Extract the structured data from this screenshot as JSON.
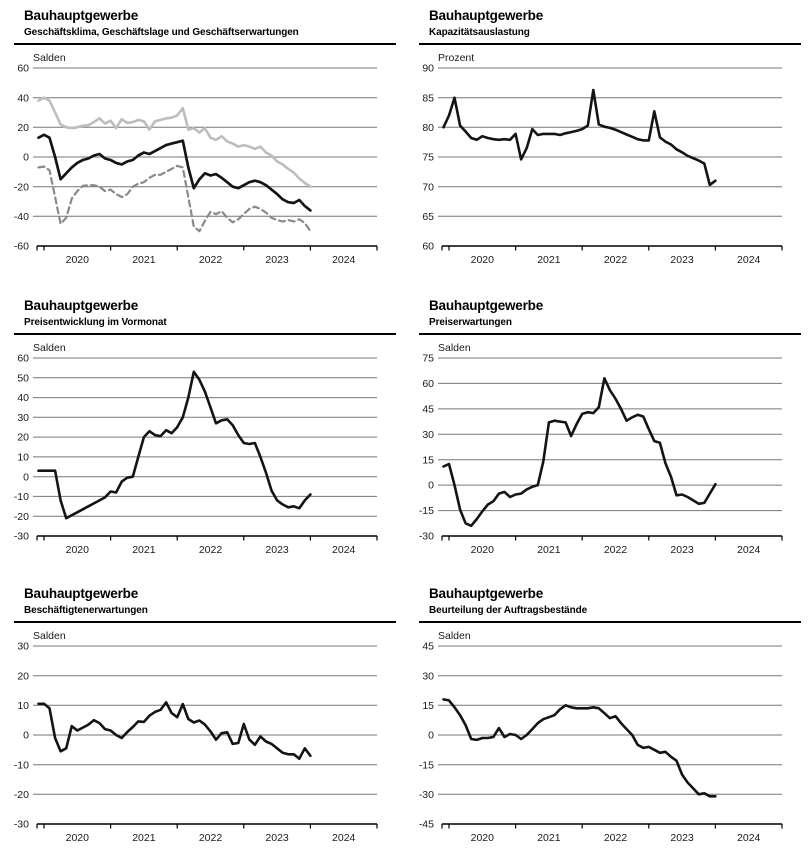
{
  "page_background": "#ffffff",
  "chart_data": [
    {
      "type": "line",
      "title": "Bauhauptgewerbe",
      "subtitle": "Geschäftsklima, Geschäftslage und Geschäftserwartungen",
      "ylabel": "Salden",
      "y_ticks": [
        60,
        40,
        20,
        0,
        -20,
        -40,
        -60
      ],
      "ylim": [
        -60,
        60
      ],
      "x_tick_labels": [
        "2020",
        "2021",
        "2022",
        "2023",
        "2024"
      ],
      "x_monthly_start": "2019-12",
      "grid": true,
      "legend_position": "none",
      "grid_color": "#777777",
      "series": [
        {
          "name": "Geschäftslage",
          "color": "#bdbdbd",
          "width": 2.6,
          "dash": null,
          "values": [
            38,
            40,
            38,
            30,
            22,
            20,
            19.5,
            20,
            21,
            21.5,
            23.5,
            26,
            22.5,
            24.5,
            19.5,
            25.5,
            23,
            23.5,
            25,
            24,
            18.5,
            24,
            25,
            26,
            26.5,
            28,
            33,
            18.5,
            19.5,
            16.5,
            19.5,
            13,
            11.5,
            14,
            10.5,
            9,
            7,
            8,
            7,
            5.5,
            7,
            3,
            1,
            -3,
            -5,
            -8,
            -10.5,
            -14.5,
            -17.5,
            -20
          ]
        },
        {
          "name": "Geschäftserwartungen",
          "color": "#8a8a8a",
          "width": 2.2,
          "dash": "6 4",
          "values": [
            -7,
            -6.5,
            -9,
            -27,
            -45,
            -41,
            -28,
            -23,
            -19.5,
            -19,
            -19,
            -20,
            -23,
            -22,
            -25,
            -27,
            -25,
            -20,
            -18,
            -17,
            -14,
            -12,
            -12,
            -10,
            -8,
            -6,
            -7,
            -27,
            -47,
            -50,
            -43,
            -37,
            -38.5,
            -36.5,
            -41,
            -44,
            -42,
            -38.5,
            -35,
            -33.5,
            -35,
            -37.5,
            -41,
            -42.5,
            -43.5,
            -42.5,
            -43.5,
            -42,
            -44.5,
            -50
          ]
        },
        {
          "name": "Geschäftsklima",
          "color": "#141414",
          "width": 2.7,
          "dash": null,
          "values": [
            13,
            15,
            13,
            0,
            -15,
            -11,
            -7,
            -4,
            -2,
            -1,
            1,
            2,
            -1,
            -2,
            -4,
            -5,
            -3,
            -2,
            1,
            3,
            2,
            4,
            6,
            8,
            9,
            10,
            11,
            -7,
            -21,
            -15,
            -11,
            -12.5,
            -11.5,
            -14,
            -17,
            -20,
            -21,
            -19,
            -17,
            -16,
            -17,
            -19,
            -22,
            -25,
            -28.5,
            -30.5,
            -31,
            -29,
            -33,
            -36
          ]
        }
      ]
    },
    {
      "type": "line",
      "title": "Bauhauptgewerbe",
      "subtitle": "Kapazitätsauslastung",
      "ylabel": "Prozent",
      "y_ticks": [
        90,
        85,
        80,
        75,
        70,
        65,
        60
      ],
      "ylim": [
        60,
        90
      ],
      "x_tick_labels": [
        "2020",
        "2021",
        "2022",
        "2023",
        "2024"
      ],
      "x_monthly_start": "2019-12",
      "grid": true,
      "legend_position": "none",
      "grid_color": "#777777",
      "series": [
        {
          "name": "Kapazitätsauslastung",
          "color": "#141414",
          "width": 2.6,
          "dash": null,
          "values": [
            80,
            82,
            85,
            80.3,
            79.3,
            78.2,
            77.9,
            78.5,
            78.2,
            78,
            77.9,
            78,
            77.9,
            78.9,
            74.6,
            76.5,
            79.7,
            78.7,
            78.9,
            78.9,
            78.9,
            78.7,
            79,
            79.2,
            79.4,
            79.7,
            80.3,
            86.3,
            80.5,
            80.1,
            79.9,
            79.6,
            79.2,
            78.8,
            78.4,
            78,
            77.8,
            77.8,
            82.7,
            78.3,
            77.6,
            77.1,
            76.3,
            75.8,
            75.2,
            74.8,
            74.4,
            73.9,
            70.3,
            71
          ]
        }
      ]
    },
    {
      "type": "line",
      "title": "Bauhauptgewerbe",
      "subtitle": "Preisentwicklung im Vormonat",
      "ylabel": "Salden",
      "y_ticks": [
        60,
        50,
        40,
        30,
        20,
        10,
        0,
        -10,
        -20,
        -30
      ],
      "ylim": [
        -30,
        60
      ],
      "x_tick_labels": [
        "2020",
        "2021",
        "2022",
        "2023",
        "2024"
      ],
      "x_monthly_start": "2019-12",
      "grid": true,
      "legend_position": "none",
      "grid_color": "#777777",
      "series": [
        {
          "name": "Preisentwicklung im Vormonat",
          "color": "#141414",
          "width": 2.6,
          "dash": null,
          "values": [
            3,
            3,
            3,
            3,
            -12,
            -21,
            -19.5,
            -18,
            -16.5,
            -15,
            -13.5,
            -12,
            -10.5,
            -7.5,
            -8,
            -2.5,
            -0.5,
            0,
            10,
            20,
            23,
            21,
            20.5,
            23.5,
            22,
            25,
            30,
            40,
            53,
            49,
            43,
            35,
            27,
            28.5,
            29,
            26,
            21,
            17,
            16.5,
            17,
            10,
            2,
            -7,
            -12,
            -14,
            -15.5,
            -15,
            -16,
            -12,
            -9
          ]
        }
      ]
    },
    {
      "type": "line",
      "title": "Bauhauptgewerbe",
      "subtitle": "Preiserwartungen",
      "ylabel": "Salden",
      "y_ticks": [
        75,
        60,
        45,
        30,
        15,
        0,
        -15,
        -30
      ],
      "ylim": [
        -30,
        75
      ],
      "x_tick_labels": [
        "2020",
        "2021",
        "2022",
        "2023",
        "2024"
      ],
      "x_monthly_start": "2019-12",
      "grid": true,
      "legend_position": "none",
      "grid_color": "#777777",
      "series": [
        {
          "name": "Preiserwartungen",
          "color": "#141414",
          "width": 2.6,
          "dash": null,
          "values": [
            11,
            12.5,
            0,
            -14.5,
            -22.5,
            -24,
            -20,
            -15.5,
            -11.5,
            -9.5,
            -5,
            -4,
            -7,
            -5.5,
            -5,
            -2.5,
            -1,
            0,
            14,
            37,
            38,
            37.5,
            37,
            29,
            36,
            42,
            43,
            42.5,
            46,
            63,
            56,
            51,
            45,
            38,
            40,
            41.5,
            40.5,
            33,
            26,
            25,
            13,
            5,
            -6,
            -5.5,
            -7,
            -9,
            -11,
            -10.5,
            -5,
            0.5
          ]
        }
      ]
    },
    {
      "type": "line",
      "title": "Bauhauptgewerbe",
      "subtitle": "Beschäftigtenerwartungen",
      "ylabel": "Salden",
      "y_ticks": [
        30,
        20,
        10,
        0,
        -10,
        -20,
        -30
      ],
      "ylim": [
        -30,
        30
      ],
      "x_tick_labels": [
        "2020",
        "2021",
        "2022",
        "2023",
        "2024"
      ],
      "x_monthly_start": "2019-12",
      "grid": true,
      "legend_position": "none",
      "grid_color": "#777777",
      "series": [
        {
          "name": "Beschäftigtenerwartungen",
          "color": "#141414",
          "width": 2.6,
          "dash": null,
          "values": [
            10.5,
            10.5,
            9,
            -1,
            -5.5,
            -4.5,
            3,
            1.5,
            2.5,
            3.5,
            5,
            4,
            2,
            1.5,
            0,
            -1,
            1,
            2.7,
            4.6,
            4.4,
            6.5,
            7.8,
            8.5,
            11,
            7.4,
            6,
            10.4,
            5.4,
            4.2,
            4.9,
            3.5,
            1.2,
            -1.6,
            0.6,
            0.9,
            -3,
            -2.7,
            3.7,
            -1.5,
            -3.3,
            -0.5,
            -2.2,
            -3,
            -4.5,
            -6,
            -6.5,
            -6.5,
            -8,
            -4.5,
            -7
          ]
        }
      ]
    },
    {
      "type": "line",
      "title": "Bauhauptgewerbe",
      "subtitle": "Beurteilung der Auftragsbestände",
      "ylabel": "Salden",
      "y_ticks": [
        45,
        30,
        15,
        0,
        -15,
        -30,
        -45
      ],
      "ylim": [
        -45,
        45
      ],
      "x_tick_labels": [
        "2020",
        "2021",
        "2022",
        "2023",
        "2024"
      ],
      "x_monthly_start": "2019-12",
      "grid": true,
      "legend_position": "none",
      "grid_color": "#777777",
      "series": [
        {
          "name": "Beurteilung der Auftragsbestände",
          "color": "#141414",
          "width": 2.6,
          "dash": null,
          "values": [
            18,
            17.5,
            14,
            10,
            5,
            -2,
            -2.5,
            -1.5,
            -1.5,
            -1,
            3.5,
            -1,
            0.5,
            0,
            -2,
            0,
            3,
            6,
            8,
            9,
            10,
            13,
            15,
            14,
            13.5,
            13.5,
            13.5,
            14,
            13.5,
            11,
            8.5,
            9.5,
            6,
            3,
            0,
            -5,
            -6.5,
            -6,
            -7.5,
            -9,
            -8.5,
            -11,
            -13,
            -20,
            -24,
            -27,
            -30,
            -29.5,
            -31,
            -31
          ]
        }
      ]
    }
  ]
}
